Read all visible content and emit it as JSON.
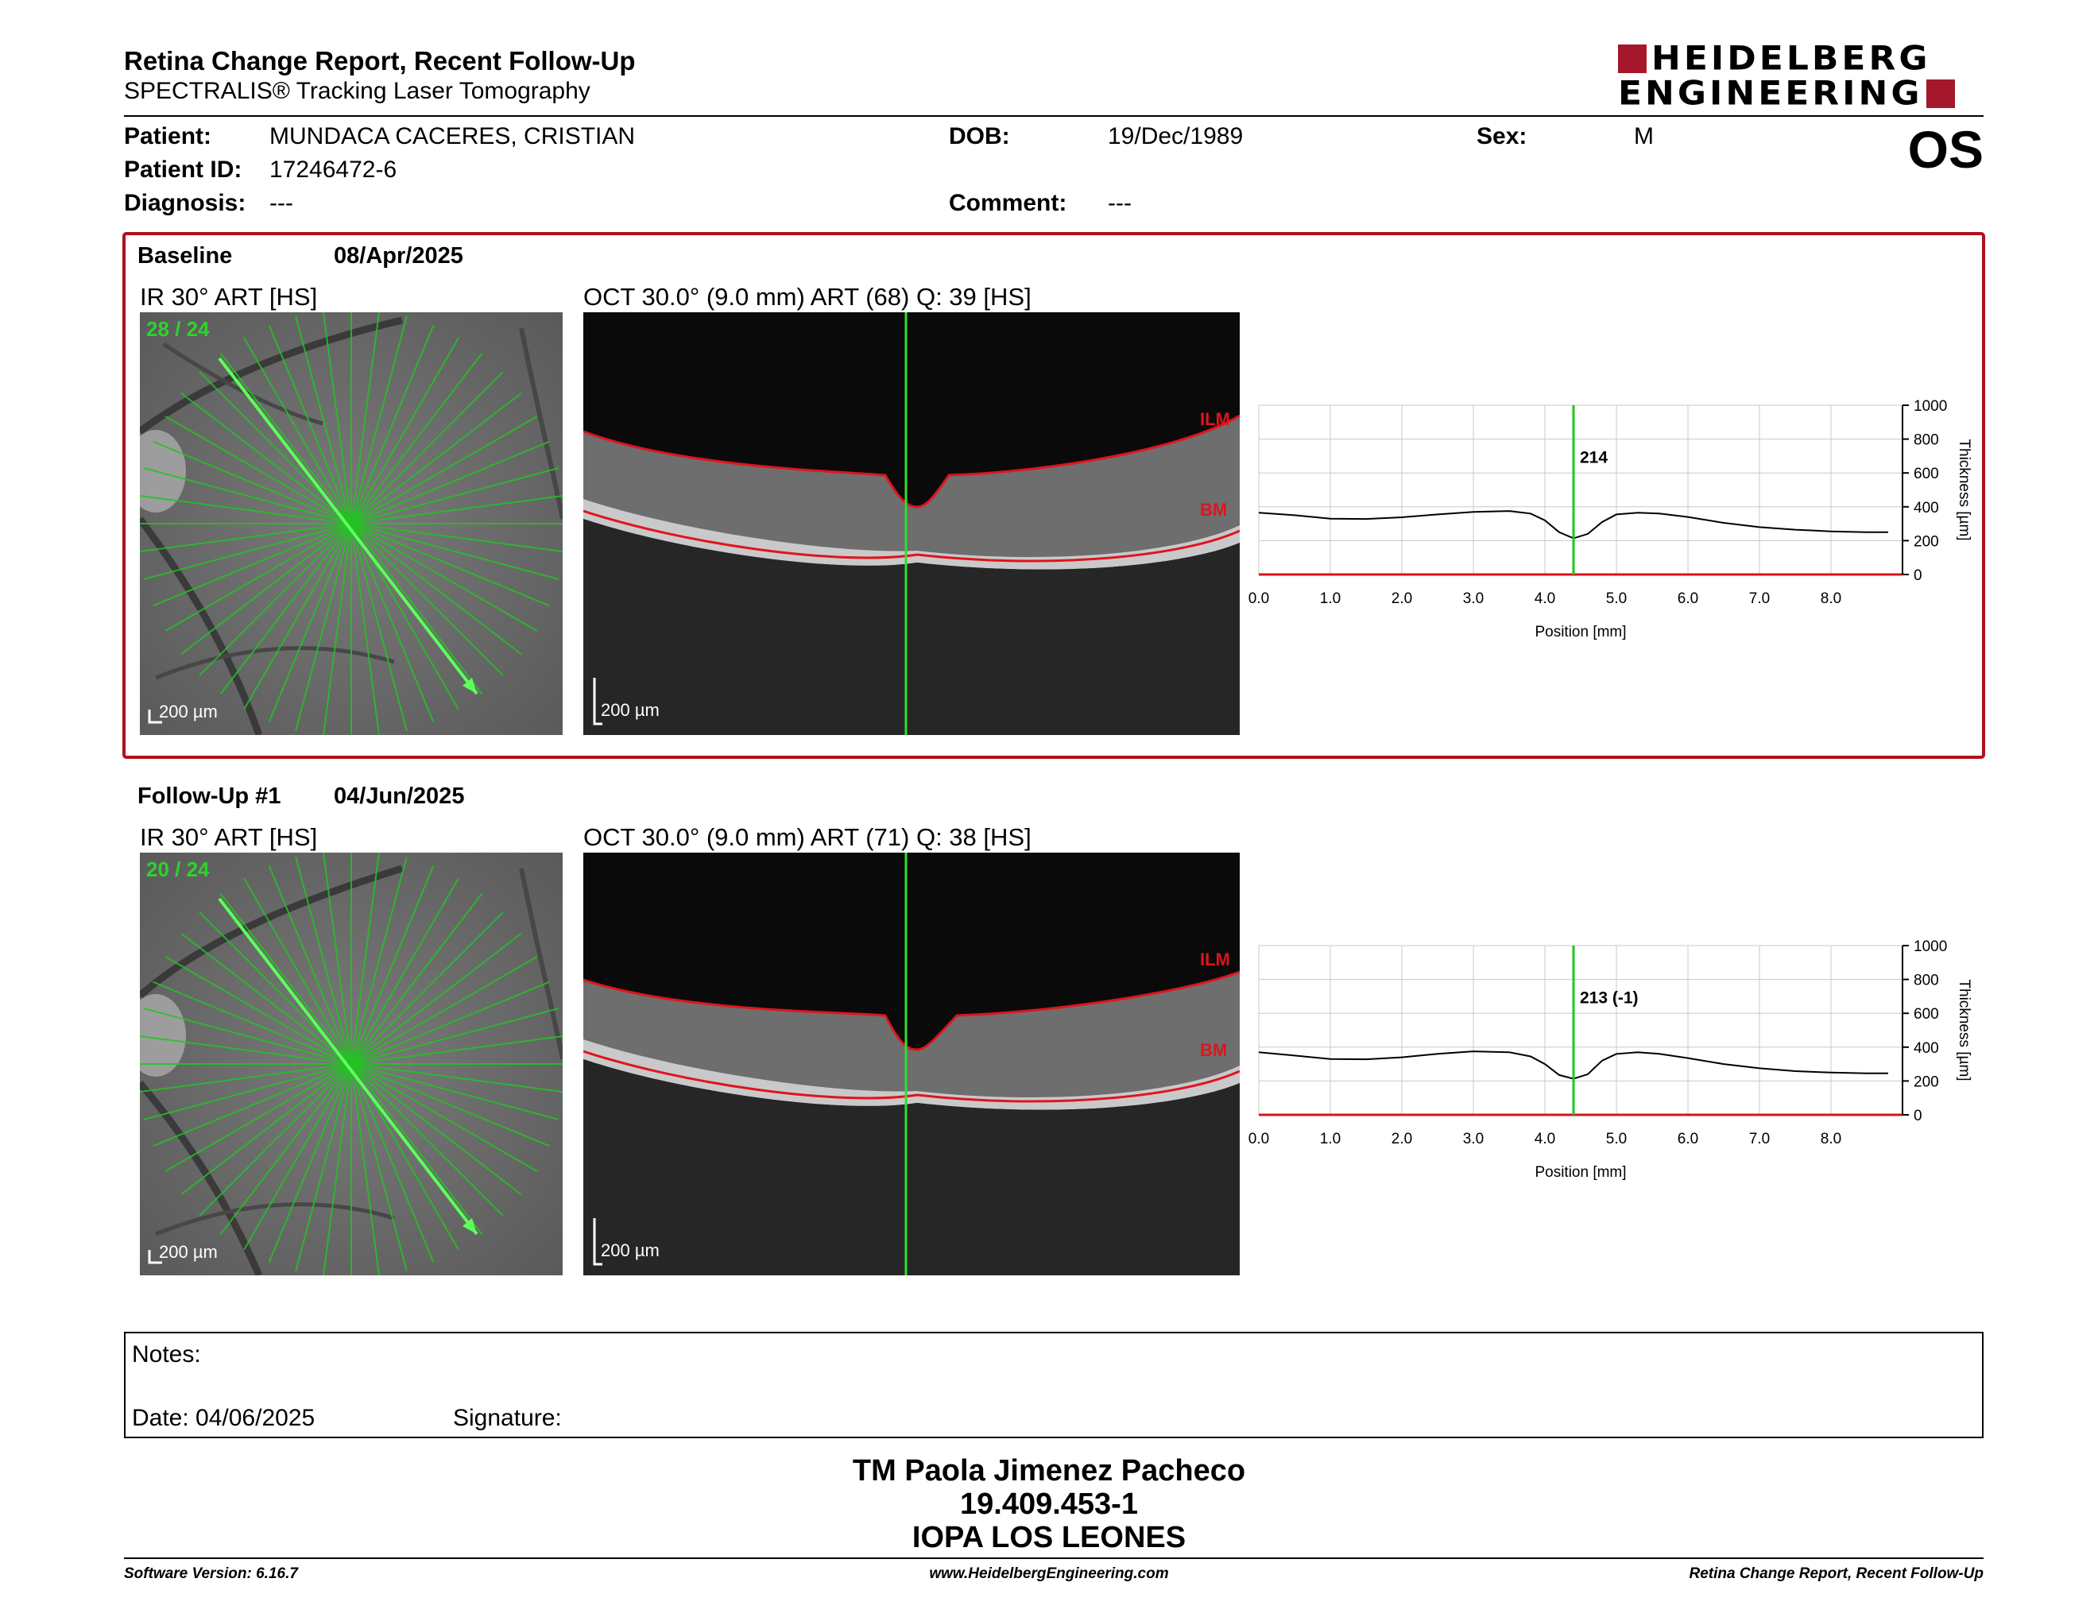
{
  "header": {
    "title": "Retina Change Report, Recent Follow-Up",
    "subtitle": "SPECTRALIS® Tracking Laser Tomography",
    "logo_line1": "HEIDELBERG",
    "logo_line2": "ENGINEERING",
    "eye": "OS"
  },
  "patient": {
    "patient_label": "Patient:",
    "patient_value": "MUNDACA CACERES, CRISTIAN",
    "id_label": "Patient ID:",
    "id_value": "17246472-6",
    "diagnosis_label": "Diagnosis:",
    "diagnosis_value": "---",
    "dob_label": "DOB:",
    "dob_value": "19/Dec/1989",
    "comment_label": "Comment:",
    "comment_value": "---",
    "sex_label": "Sex:",
    "sex_value": "M"
  },
  "baseline": {
    "label": "Baseline",
    "date": "08/Apr/2025",
    "ir_label": "IR 30° ART [HS]",
    "ir_counter": "28 / 24",
    "ir_scale": "200 µm",
    "oct_label": "OCT 30.0° (9.0 mm) ART (68) Q: 39 [HS]",
    "oct_scale": "200 µm",
    "ilm": "ILM",
    "bm": "BM",
    "marker_value": "214"
  },
  "followup": {
    "label": "Follow-Up #1",
    "date": "04/Jun/2025",
    "ir_label": "IR 30° ART [HS]",
    "ir_counter": "20 / 24",
    "ir_scale": "200 µm",
    "oct_label": "OCT 30.0° (9.0 mm) ART (71) Q: 38 [HS]",
    "oct_scale": "200 µm",
    "ilm": "ILM",
    "bm": "BM",
    "marker_value": "213 (-1)"
  },
  "chart_data": [
    {
      "type": "line",
      "xlabel": "Position [mm]",
      "ylabel": "Thickness [µm]",
      "xlim": [
        0,
        9.0
      ],
      "ylim": [
        0,
        1000
      ],
      "x_ticks": [
        "0.0",
        "1.0",
        "2.0",
        "3.0",
        "4.0",
        "5.0",
        "6.0",
        "7.0",
        "8.0"
      ],
      "y_ticks": [
        "0",
        "200",
        "400",
        "600",
        "800",
        "1000"
      ],
      "marker_x": 4.4,
      "marker_label": "214",
      "series": [
        {
          "x": [
            0,
            0.5,
            1.0,
            1.5,
            2.0,
            2.5,
            3.0,
            3.5,
            3.8,
            4.0,
            4.2,
            4.4,
            4.6,
            4.8,
            5.0,
            5.3,
            5.6,
            6.0,
            6.5,
            7.0,
            7.5,
            8.0,
            8.5,
            8.8
          ],
          "values": [
            365,
            350,
            330,
            328,
            338,
            355,
            370,
            375,
            360,
            320,
            250,
            214,
            240,
            310,
            355,
            365,
            360,
            340,
            305,
            280,
            265,
            255,
            250,
            250
          ]
        }
      ]
    },
    {
      "type": "line",
      "xlabel": "Position [mm]",
      "ylabel": "Thickness [µm]",
      "xlim": [
        0,
        9.0
      ],
      "ylim": [
        0,
        1000
      ],
      "x_ticks": [
        "0.0",
        "1.0",
        "2.0",
        "3.0",
        "4.0",
        "5.0",
        "6.0",
        "7.0",
        "8.0"
      ],
      "y_ticks": [
        "0",
        "200",
        "400",
        "600",
        "800",
        "1000"
      ],
      "marker_x": 4.4,
      "marker_label": "213 (-1)",
      "series": [
        {
          "x": [
            0,
            0.5,
            1.0,
            1.5,
            2.0,
            2.5,
            3.0,
            3.5,
            3.8,
            4.0,
            4.2,
            4.4,
            4.6,
            4.8,
            5.0,
            5.3,
            5.6,
            6.0,
            6.5,
            7.0,
            7.5,
            8.0,
            8.5,
            8.8
          ],
          "values": [
            370,
            350,
            330,
            328,
            340,
            360,
            375,
            370,
            345,
            300,
            235,
            213,
            240,
            320,
            360,
            370,
            360,
            335,
            300,
            275,
            258,
            250,
            245,
            245
          ]
        }
      ]
    }
  ],
  "notes": {
    "notes_label": "Notes:",
    "date_label": "Date: 04/06/2025",
    "signature_label": "Signature:"
  },
  "signature": {
    "name": "TM Paola Jimenez Pacheco",
    "rut": "19.409.453-1",
    "institution": "IOPA LOS LEONES"
  },
  "footer": {
    "software": "Software Version: 6.16.7",
    "website": "www.HeidelbergEngineering.com",
    "report": "Retina Change Report, Recent Follow-Up"
  },
  "colors": {
    "brand_red": "#a5182b",
    "scan_green": "#22c422",
    "layer_red": "#d8131b"
  }
}
